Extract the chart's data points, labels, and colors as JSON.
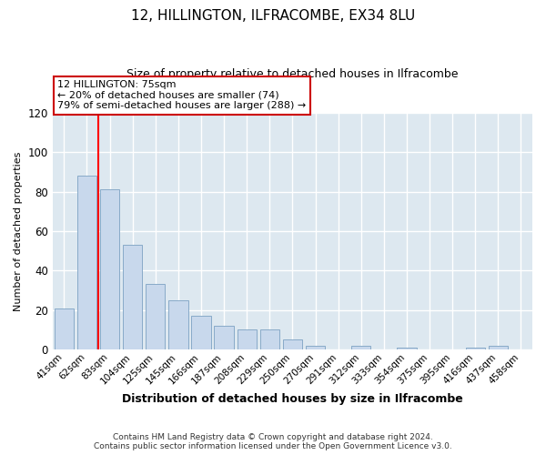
{
  "title": "12, HILLINGTON, ILFRACOMBE, EX34 8LU",
  "subtitle": "Size of property relative to detached houses in Ilfracombe",
  "xlabel": "Distribution of detached houses by size in Ilfracombe",
  "ylabel": "Number of detached properties",
  "categories": [
    "41sqm",
    "62sqm",
    "83sqm",
    "104sqm",
    "125sqm",
    "145sqm",
    "166sqm",
    "187sqm",
    "208sqm",
    "229sqm",
    "250sqm",
    "270sqm",
    "291sqm",
    "312sqm",
    "333sqm",
    "354sqm",
    "375sqm",
    "395sqm",
    "416sqm",
    "437sqm",
    "458sqm"
  ],
  "values": [
    21,
    88,
    81,
    53,
    33,
    25,
    17,
    12,
    10,
    10,
    5,
    2,
    0,
    2,
    0,
    1,
    0,
    0,
    1,
    2,
    0
  ],
  "bar_color": "#c8d8ec",
  "bar_edge_color": "#88aac8",
  "ylim": [
    0,
    120
  ],
  "yticks": [
    0,
    20,
    40,
    60,
    80,
    100,
    120
  ],
  "annotation_text": "12 HILLINGTON: 75sqm\n← 20% of detached houses are smaller (74)\n79% of semi-detached houses are larger (288) →",
  "annotation_box_color": "#ffffff",
  "annotation_box_edge": "#cc0000",
  "footer_line1": "Contains HM Land Registry data © Crown copyright and database right 2024.",
  "footer_line2": "Contains public sector information licensed under the Open Government Licence v3.0.",
  "background_color": "#ffffff",
  "plot_bg_color": "#dde8f0"
}
